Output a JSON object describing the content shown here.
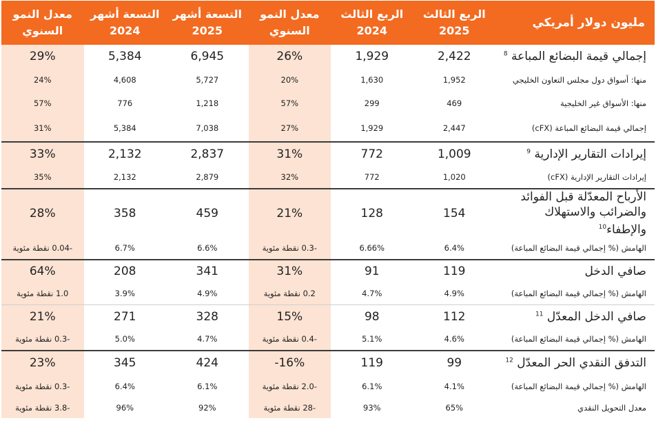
{
  "header": {
    "label": "مليون دولار أمريكي",
    "cols": [
      {
        "line1": "الربع الثالث",
        "line2": "2025"
      },
      {
        "line1": "الربع الثالث",
        "line2": "2024"
      },
      {
        "line1": "معدل النمو",
        "line2": "السنوي"
      },
      {
        "line1": "التسعة أشهر",
        "line2": "2025"
      },
      {
        "line1": "التسعة أشهر",
        "line2": "2024"
      },
      {
        "line1": "معدل النمو",
        "line2": "السنوي"
      }
    ]
  },
  "rows": [
    {
      "label": "إجمالي قيمة البضائع المباعة",
      "sup": "8",
      "values": [
        "2,422",
        "1,929",
        "26%",
        "6,945",
        "5,384",
        "29%"
      ]
    },
    {
      "label": "منها: أسواق دول مجلس التعاون الخليجي",
      "sup": "",
      "values": [
        "1,952",
        "1,630",
        "20%",
        "5,727",
        "4,608",
        "24%"
      ]
    },
    {
      "label": "منها: الأسواق غير الخليجية",
      "sup": "",
      "values": [
        "469",
        "299",
        "57%",
        "1,218",
        "776",
        "57%"
      ]
    },
    {
      "label": "إجمالي قيمة البضائع المباعة (cFX)",
      "sup": "",
      "values": [
        "2,447",
        "1,929",
        "27%",
        "7,038",
        "5,384",
        "31%"
      ]
    },
    {
      "label": "إيرادات التقارير الإدارية",
      "sup": "9",
      "values": [
        "1,009",
        "772",
        "31%",
        "2,837",
        "2,132",
        "33%"
      ]
    },
    {
      "label": "إيرادات التقارير الإدارية (cFX)",
      "sup": "",
      "values": [
        "1,020",
        "772",
        "32%",
        "2,879",
        "2,132",
        "35%"
      ]
    },
    {
      "label": "الأرباح المعدّلة قبل الفوائد والضرائب والاستهلاك والإطفاء",
      "sup": "10",
      "values": [
        "154",
        "128",
        "21%",
        "459",
        "358",
        "28%"
      ]
    },
    {
      "label": "الهامش (% إجمالي قيمة البضائع المباعة)",
      "sup": "",
      "values": [
        "6.4%",
        "6.66%",
        "-0.3 نقطة مئوية",
        "6.6%",
        "6.7%",
        "-0.04 نقطة مئوية"
      ]
    },
    {
      "label": "صافي الدخل",
      "sup": "",
      "values": [
        "119",
        "91",
        "31%",
        "341",
        "208",
        "64%"
      ]
    },
    {
      "label": "الهامش (% إجمالي قيمة البضائع المباعة)",
      "sup": "",
      "values": [
        "4.9%",
        "4.7%",
        "0.2 نقطة مئوية",
        "4.9%",
        "3.9%",
        "1.0 نقطة مئوية"
      ]
    },
    {
      "label": "صافي الدخل المعدّل",
      "sup": "11",
      "values": [
        "112",
        "98",
        "15%",
        "328",
        "271",
        "21%"
      ]
    },
    {
      "label": "الهامش (% إجمالي قيمة البضائع المباعة)",
      "sup": "",
      "values": [
        "4.6%",
        "5.1%",
        "-0.4 نقطة مئوية",
        "4.7%",
        "5.0%",
        "-0.3 نقطة مئوية"
      ]
    },
    {
      "label": "التدفق النقدي الحر المعدّل",
      "sup": "12",
      "values": [
        "99",
        "119",
        "16%-",
        "424",
        "345",
        "23%"
      ]
    },
    {
      "label": "الهامش (% إجمالي قيمة البضائع المباعة)",
      "sup": "",
      "values": [
        "4.1%",
        "6.1%",
        "-2.0 نقطة مئوية",
        "6.1%",
        "6.4%",
        "-0.3 نقطة مئوية"
      ]
    },
    {
      "label": "معدل التحويل النقدي",
      "sup": "",
      "values": [
        "65%",
        "93%",
        "-28 نقطة مئوية",
        "92%",
        "96%",
        "-3.8 نقطة مئوية"
      ]
    }
  ]
}
